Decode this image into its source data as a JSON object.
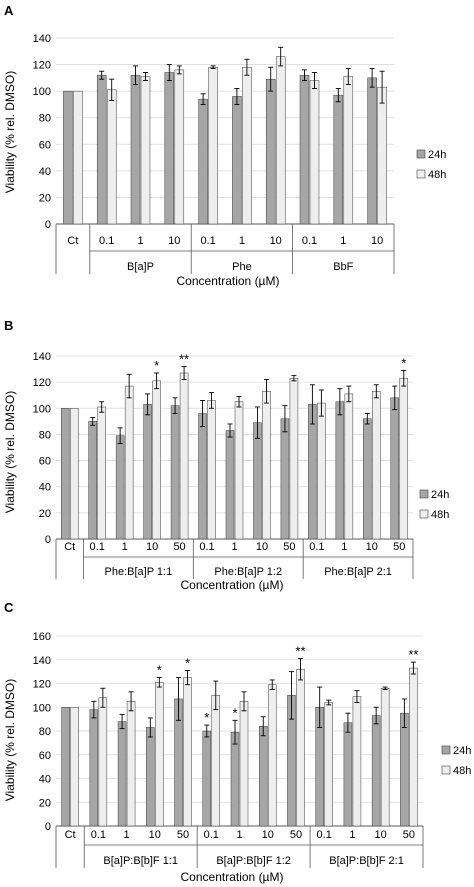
{
  "colors": {
    "s24": "#a6a6a6",
    "s48": "#eeeeee",
    "axis": "#595959",
    "grid": "#d9d9d9"
  },
  "chart_data": [
    {
      "panel": "A",
      "type": "bar",
      "ylabel": "Viability (% rel. DMSO)",
      "xlabel": "Concentration (µM)",
      "ylim": [
        0,
        140
      ],
      "yticks": [
        0,
        20,
        40,
        60,
        80,
        100,
        120,
        140
      ],
      "grid": true,
      "legend": "right",
      "categories": [
        "Ct",
        "0.1",
        "1",
        "10",
        "0.1",
        "1",
        "10",
        "0.1",
        "1",
        "10"
      ],
      "groups": [
        {
          "label": "B[a]P",
          "start": 1,
          "end": 3
        },
        {
          "label": "Phe",
          "start": 4,
          "end": 6
        },
        {
          "label": "BbF",
          "start": 7,
          "end": 9
        }
      ],
      "series": [
        {
          "name": "24h",
          "values": [
            100,
            112,
            112,
            114,
            94,
            96,
            109,
            112,
            97,
            110
          ],
          "errors": [
            0,
            3,
            7,
            6,
            4,
            6,
            9,
            4,
            5,
            7
          ],
          "stars": [
            "",
            "",
            "",
            "",
            "",
            "",
            "",
            "",
            "",
            ""
          ]
        },
        {
          "name": "48h",
          "values": [
            100,
            101,
            111,
            116,
            118,
            118,
            126,
            108,
            111,
            103
          ],
          "errors": [
            0,
            8,
            3,
            3,
            1,
            6,
            7,
            6,
            6,
            12
          ],
          "stars": [
            "",
            "",
            "",
            "",
            "",
            "",
            "",
            "",
            "",
            ""
          ]
        }
      ]
    },
    {
      "panel": "B",
      "type": "bar",
      "ylabel": "Viability (% rel. DMSO)",
      "xlabel": "Concentration (µM)",
      "ylim": [
        0,
        140
      ],
      "yticks": [
        0,
        20,
        40,
        60,
        80,
        100,
        120,
        140
      ],
      "grid": true,
      "legend": "right",
      "categories": [
        "Ct",
        "0.1",
        "1",
        "10",
        "50",
        "0.1",
        "1",
        "10",
        "50",
        "0.1",
        "1",
        "10",
        "50"
      ],
      "groups": [
        {
          "label": "Phe:B[a]P 1:1",
          "start": 1,
          "end": 4
        },
        {
          "label": "Phe:B[a]P 1:2",
          "start": 5,
          "end": 8
        },
        {
          "label": "Phe:B[a]P 2:1",
          "start": 9,
          "end": 12
        }
      ],
      "series": [
        {
          "name": "24h",
          "values": [
            100,
            90,
            79,
            103,
            102,
            96,
            83,
            89,
            92,
            103,
            105,
            92,
            108
          ],
          "errors": [
            0,
            3,
            6,
            8,
            6,
            10,
            5,
            12,
            10,
            15,
            10,
            4,
            9
          ],
          "stars": [
            "",
            "",
            "",
            "",
            "",
            "",
            "",
            "",
            "",
            "",
            "",
            "",
            ""
          ]
        },
        {
          "name": "48h",
          "values": [
            100,
            101,
            117,
            121,
            127,
            106,
            105,
            113,
            123,
            104,
            111,
            113,
            123
          ],
          "errors": [
            0,
            4,
            9,
            6,
            5,
            6,
            4,
            9,
            2,
            10,
            6,
            5,
            6
          ],
          "stars": [
            "",
            "",
            "",
            "*",
            "**",
            "",
            "",
            "",
            "",
            "",
            "",
            "",
            "*"
          ]
        }
      ]
    },
    {
      "panel": "C",
      "type": "bar",
      "ylabel": "Viability (% rel. DMSO)",
      "xlabel": "Concentration (µM)",
      "ylim": [
        0,
        160
      ],
      "yticks": [
        0,
        20,
        40,
        60,
        80,
        100,
        120,
        140,
        160
      ],
      "grid": true,
      "legend": "right",
      "categories": [
        "Ct",
        "0.1",
        "1",
        "10",
        "50",
        "0.1",
        "1",
        "10",
        "50",
        "0.1",
        "1",
        "10",
        "50"
      ],
      "groups": [
        {
          "label": "B[a]P:B[b]F 1:1",
          "start": 1,
          "end": 4
        },
        {
          "label": "B[a]P:B[b]F 1:2",
          "start": 5,
          "end": 8
        },
        {
          "label": "B[a]P:B[b]F 2:1",
          "start": 9,
          "end": 12
        }
      ],
      "series": [
        {
          "name": "24h",
          "values": [
            100,
            98,
            88,
            83,
            107,
            80,
            79,
            84,
            110,
            100,
            87,
            93,
            95
          ],
          "errors": [
            0,
            7,
            6,
            8,
            18,
            5,
            10,
            8,
            20,
            17,
            8,
            7,
            12
          ],
          "stars": [
            "",
            "",
            "",
            "",
            "",
            "*",
            "*",
            "",
            "",
            "",
            "",
            "",
            ""
          ]
        },
        {
          "name": "48h",
          "values": [
            100,
            108,
            105,
            121,
            125,
            110,
            105,
            119,
            132,
            104,
            109,
            116,
            133
          ],
          "errors": [
            0,
            8,
            8,
            4,
            6,
            12,
            8,
            4,
            9,
            2,
            5,
            1,
            5
          ],
          "stars": [
            "",
            "",
            "",
            "*",
            "*",
            "",
            "",
            "",
            "**",
            "",
            "",
            "",
            "**"
          ]
        }
      ]
    }
  ],
  "panels": [
    {
      "letter": "A",
      "xlabel": "Concentration (µM)",
      "ylabel": "Viability (% rel. DMSO)",
      "legend": [
        "24h",
        "48h"
      ]
    },
    {
      "letter": "B",
      "xlabel": "Concentration (µM)",
      "ylabel": "Viability (% rel. DMSO)",
      "legend": [
        "24h",
        "48h"
      ]
    },
    {
      "letter": "C",
      "xlabel": "Concentration (µM)",
      "ylabel": "Viability (% rel. DMSO)",
      "legend": [
        "24h",
        "48h"
      ]
    }
  ]
}
